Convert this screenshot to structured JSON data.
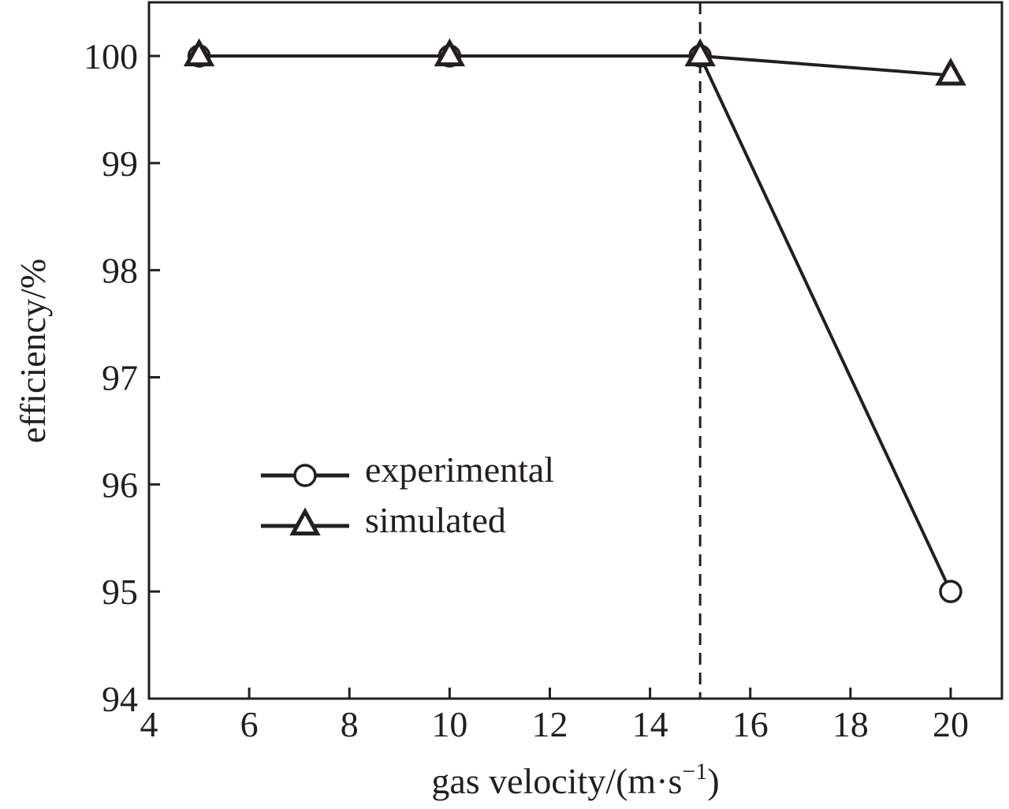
{
  "chart_data": {
    "type": "line",
    "title": "",
    "xlabel": "gas velocity/(m·s",
    "xlabel_superscript": "−1",
    "xlabel_suffix": ")",
    "ylabel": "efficiency/%",
    "xlim": [
      4,
      21
    ],
    "ylim": [
      94,
      100.5
    ],
    "xticks": [
      4,
      6,
      8,
      10,
      12,
      14,
      16,
      18,
      20
    ],
    "yticks": [
      94,
      95,
      96,
      97,
      98,
      99,
      100
    ],
    "grid": false,
    "legend_position": "center-left",
    "reference_line": {
      "orientation": "vertical",
      "x": 15,
      "style": "dashed"
    },
    "series": [
      {
        "name": "experimental",
        "marker": "circle",
        "x": [
          5,
          10,
          15,
          20
        ],
        "y": [
          100,
          100,
          100,
          95
        ]
      },
      {
        "name": "simulated",
        "marker": "triangle",
        "x": [
          5,
          10,
          15,
          20
        ],
        "y": [
          100,
          100,
          100,
          99.82
        ]
      }
    ]
  },
  "colors": {
    "ink": "#231f20",
    "background": "#ffffff"
  }
}
